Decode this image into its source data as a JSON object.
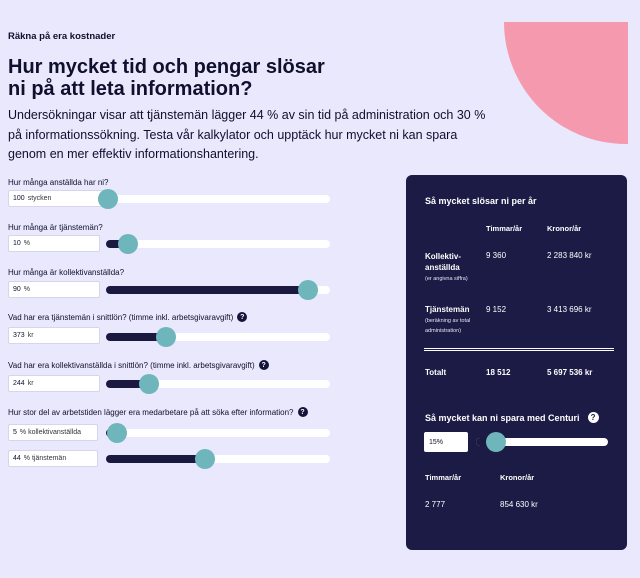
{
  "eyebrow": "Räkna på era kostnader",
  "headline": "Hur mycket tid och pengar slösar\nni på att leta information?",
  "intro": "Undersökningar visar att tjänstemän lägger 44 % av sin tid på administration och 30 % på informationssökning. Testa vår kalkylator och upptäck hur mycket ni kan spara genom en mer effektiv informationshantering.",
  "colors": {
    "background": "#e9e8fc",
    "panel": "#1b1b45",
    "accent": "#6fb6bc",
    "blob": "#f59aae"
  },
  "questions": {
    "employees": {
      "label": "Hur många anställda har ni?",
      "value": "100",
      "unit": "stycken",
      "level": 0.01
    },
    "officials": {
      "label": "Hur många är tjänstemän?",
      "value": "10",
      "unit": "%",
      "level": 0.1
    },
    "collective": {
      "label": "Hur många är kollektivanställda?",
      "value": "90",
      "unit": "%",
      "level": 0.9
    },
    "official_wage": {
      "label": "Vad har era tjänstemän i snittlön? (timme inkl. arbetsgivaravgift)",
      "help": "?",
      "value": "373",
      "unit": "kr",
      "level": 0.27
    },
    "collective_wage": {
      "label": "Vad har era kollektivanställda i snittlön? (timme inkl. arbetsgivaravgift)",
      "help": "?",
      "value": "244",
      "unit": "kr",
      "level": 0.19
    },
    "search_time": {
      "label": "Hur stor del av arbetstiden lägger era medarbetare på att söka efter information?",
      "help": "?",
      "collective": {
        "value": "5",
        "unit": "% kollektivanställda",
        "level": 0.05
      },
      "officials": {
        "value": "44",
        "unit": "% tjänstemän",
        "level": 0.44
      }
    }
  },
  "results": {
    "title": "Så mycket slösar ni per år",
    "col_hours": "Timmar/år",
    "col_money": "Kronor/år",
    "rows": [
      {
        "label": "Kollektiv-\nanställda",
        "note": "(er angivna siffra)",
        "hours": "9 360",
        "money": "2 283 840 kr"
      },
      {
        "label": "Tjänstemän",
        "note": "(beräkning av total\nadministration)",
        "hours": "9 152",
        "money": "3 413 696 kr"
      }
    ],
    "total": {
      "label": "Totalt",
      "hours": "18 512",
      "money": "5 697 536 kr"
    }
  },
  "savings": {
    "title": "Så mycket kan ni spara med Centuri",
    "help": "?",
    "value": "15%",
    "level": 0.15,
    "col_hours": "Timmar/år",
    "col_money": "Kronor/år",
    "hours": "2 777",
    "money": "854 630 kr"
  }
}
